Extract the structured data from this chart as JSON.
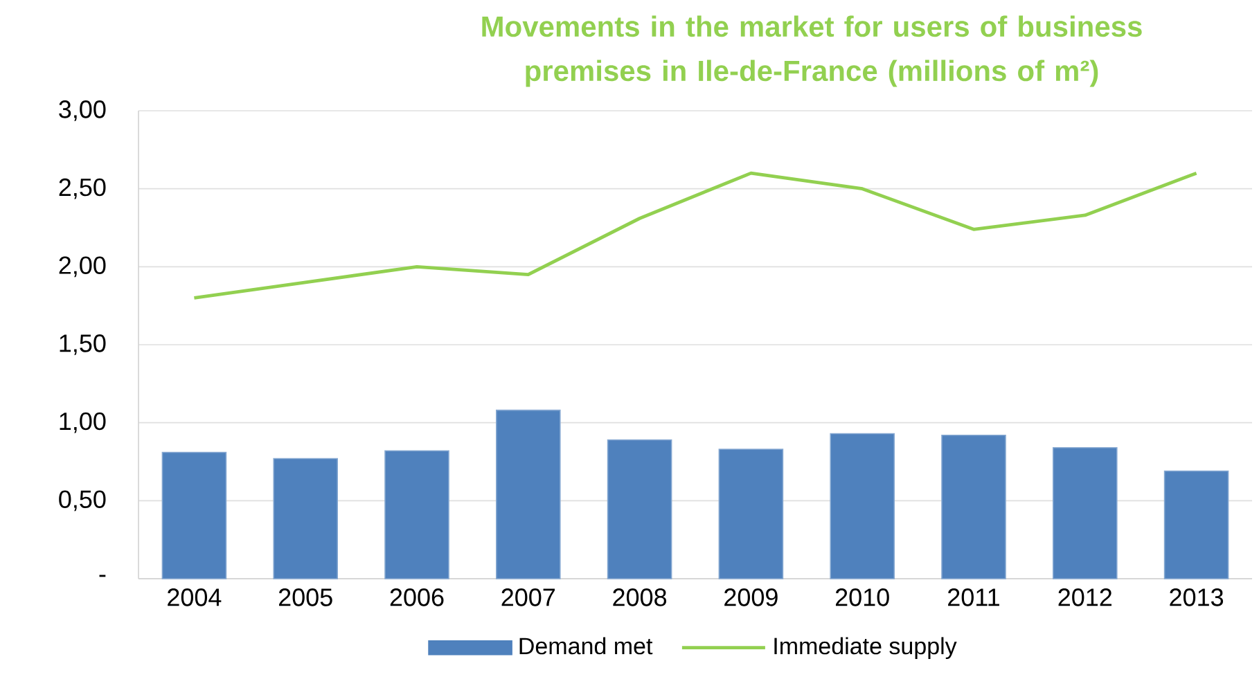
{
  "chart_data": {
    "type": "bar",
    "title": "Movements in the market for users of business premises in Ile-de-France (millions of m²)",
    "categories": [
      "2004",
      "2005",
      "2006",
      "2007",
      "2008",
      "2009",
      "2010",
      "2011",
      "2012",
      "2013"
    ],
    "series": [
      {
        "name": "Demand met",
        "color": "#4f81bd",
        "values": [
          0.81,
          0.77,
          0.82,
          1.08,
          0.89,
          0.83,
          0.93,
          0.92,
          0.84,
          0.69
        ]
      },
      {
        "name": "Immediate supply",
        "type": "line",
        "color": "#92d050",
        "values": [
          1.8,
          1.9,
          2.0,
          1.95,
          2.31,
          2.6,
          2.5,
          2.24,
          2.33,
          2.6
        ]
      }
    ],
    "ylim": [
      0,
      3
    ],
    "yticks": [
      {
        "value": 0,
        "label": "-"
      },
      {
        "value": 0.5,
        "label": "0,50"
      },
      {
        "value": 1,
        "label": "1,00"
      },
      {
        "value": 1.5,
        "label": "1,50"
      },
      {
        "value": 2,
        "label": "2,00"
      },
      {
        "value": 2.5,
        "label": "2,50"
      },
      {
        "value": 3,
        "label": "3,00"
      }
    ],
    "grid": "y",
    "legend": "bottom",
    "marker": "none",
    "line_style": "solid"
  }
}
